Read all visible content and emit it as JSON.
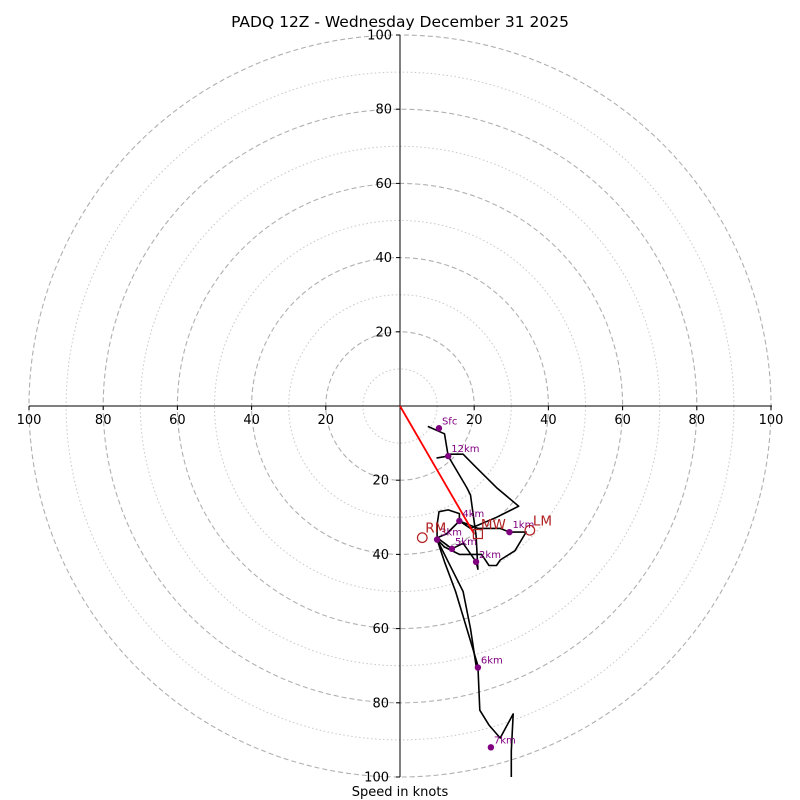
{
  "chart_data": {
    "type": "line",
    "title": "PADQ 12Z - Wednesday December 31 2025",
    "xlabel": "Speed in knots",
    "ylabel": "",
    "xlim": [
      -100,
      100
    ],
    "ylim": [
      -100,
      100
    ],
    "rings_major": [
      20,
      40,
      60,
      80,
      100
    ],
    "rings_minor": [
      10,
      30,
      50,
      70,
      90
    ],
    "x_ticks": [
      "100",
      "80",
      "60",
      "40",
      "20",
      "20",
      "40",
      "60",
      "80",
      "100"
    ],
    "y_ticks": [
      "20",
      "40",
      "60",
      "80",
      "100"
    ],
    "hodograph": [
      [
        7.5,
        -5.5
      ],
      [
        12,
        -7.5
      ],
      [
        13,
        -13.5
      ],
      [
        10,
        -14
      ],
      [
        13,
        -13.5
      ],
      [
        18,
        -22
      ],
      [
        19,
        -24
      ],
      [
        20.5,
        -35
      ],
      [
        21,
        -44
      ],
      [
        20.5,
        -42
      ],
      [
        17,
        -37
      ],
      [
        14,
        -38.5
      ],
      [
        10,
        -35.5
      ],
      [
        12.5,
        -34.5
      ],
      [
        16,
        -31
      ],
      [
        16,
        -29
      ],
      [
        13,
        -28
      ],
      [
        10.5,
        -28.5
      ],
      [
        10,
        -32
      ],
      [
        10,
        -36
      ],
      [
        12,
        -38
      ],
      [
        16,
        -40
      ],
      [
        22,
        -40
      ],
      [
        24,
        -43
      ],
      [
        26,
        -43
      ],
      [
        27,
        -41.5
      ],
      [
        31,
        -39
      ],
      [
        34,
        -34
      ],
      [
        32,
        -34
      ],
      [
        29.5,
        -34
      ],
      [
        27,
        -33
      ],
      [
        23.5,
        -33
      ],
      [
        21,
        -33
      ],
      [
        16,
        -31
      ],
      [
        19,
        -33
      ],
      [
        26,
        -30
      ],
      [
        32,
        -27
      ],
      [
        26,
        -22
      ],
      [
        20,
        -16
      ],
      [
        17,
        -13
      ],
      [
        13.5,
        -13
      ],
      [
        13,
        -13.5
      ],
      [
        10,
        -14
      ]
    ],
    "hodograph_tail": [
      [
        10,
        -36
      ],
      [
        12,
        -42
      ],
      [
        15,
        -50
      ],
      [
        18,
        -60
      ],
      [
        21,
        -70
      ],
      [
        21.5,
        -82
      ],
      [
        24,
        -86
      ],
      [
        27,
        -89.5
      ],
      [
        30.5,
        -83
      ],
      [
        30,
        -93
      ],
      [
        30,
        -100
      ]
    ],
    "hodograph_tail2": [
      [
        10,
        -36
      ],
      [
        14,
        -44
      ],
      [
        17,
        -50
      ],
      [
        19,
        -60
      ],
      [
        20.5,
        -70
      ]
    ],
    "height_markers": [
      {
        "label": "Sfc",
        "x": 10.5,
        "y": -6
      },
      {
        "label": "12km",
        "x": 13,
        "y": -13.5
      },
      {
        "label": "4km",
        "x": 16,
        "y": -31
      },
      {
        "label": "1km",
        "x": 29.5,
        "y": -34
      },
      {
        "label": "3km",
        "x": 10,
        "y": -36
      },
      {
        "label": "5km",
        "x": 14,
        "y": -38.5
      },
      {
        "label": "2km",
        "x": 20.5,
        "y": -42
      },
      {
        "label": "6km",
        "x": 21,
        "y": -70.5
      },
      {
        "label": "7km",
        "x": 24.5,
        "y": -92
      }
    ],
    "storm_motion": [
      {
        "label": "RM",
        "x": 6,
        "y": -35.5,
        "marker": "circle"
      },
      {
        "label": "MW",
        "x": 21,
        "y": -34.5,
        "marker": "square"
      },
      {
        "label": "LM",
        "x": 35,
        "y": -33.5,
        "marker": "circle"
      }
    ],
    "shear_vector": {
      "from": [
        0,
        0
      ],
      "to": [
        20,
        -34.5
      ]
    },
    "colors": {
      "hodograph": "#000000",
      "markers": "#800080",
      "storm": "#b22222",
      "shear": "#ff0000",
      "grid": "#b0b0b0",
      "axes": "#000000"
    }
  }
}
